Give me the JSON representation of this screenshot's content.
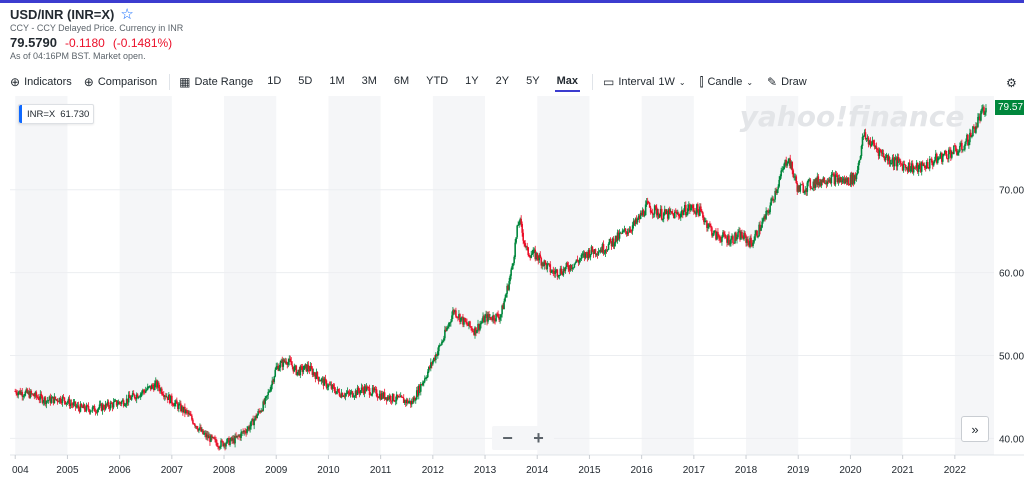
{
  "header": {
    "symbol": "USD/INR (INR=X)",
    "subtitle": "CCY - CCY Delayed Price. Currency in INR",
    "price": "79.5790",
    "change": "-0.1180",
    "change_pct": "(-0.1481%)",
    "as_of": "As of 04:16PM BST. Market open."
  },
  "toolbar": {
    "indicators": "Indicators",
    "comparison": "Comparison",
    "date_range": "Date Range",
    "ranges": [
      "1D",
      "5D",
      "1M",
      "3M",
      "6M",
      "YTD",
      "1Y",
      "2Y",
      "5Y",
      "Max"
    ],
    "active_range": "Max",
    "interval_label": "Interval",
    "interval_value": "1W",
    "chart_type": "Candle",
    "draw": "Draw"
  },
  "legend": {
    "label": "INR=X",
    "value": "61.730"
  },
  "last_price_tag": "79.57",
  "watermark": "yahoo!finance",
  "colors": {
    "up": "#00873c",
    "down": "#eb0f29",
    "accent": "#3c3ccf",
    "tag": "#00873c"
  },
  "chart_data": {
    "type": "line",
    "x": [
      2004.0,
      2004.3,
      2004.6,
      2004.9,
      2005.2,
      2005.5,
      2005.8,
      2006.1,
      2006.4,
      2006.7,
      2007.0,
      2007.3,
      2007.6,
      2007.9,
      2008.2,
      2008.5,
      2008.8,
      2009.0,
      2009.2,
      2009.4,
      2009.6,
      2009.9,
      2010.2,
      2010.4,
      2010.7,
      2011.0,
      2011.3,
      2011.6,
      2011.9,
      2012.2,
      2012.4,
      2012.6,
      2012.8,
      2013.0,
      2013.3,
      2013.5,
      2013.65,
      2013.8,
      2014.0,
      2014.3,
      2014.5,
      2014.8,
      2015.0,
      2015.3,
      2015.6,
      2015.9,
      2016.1,
      2016.4,
      2016.7,
      2016.9,
      2017.1,
      2017.4,
      2017.7,
      2017.9,
      2018.1,
      2018.4,
      2018.6,
      2018.8,
      2019.0,
      2019.3,
      2019.6,
      2019.9,
      2020.1,
      2020.25,
      2020.5,
      2020.7,
      2021.0,
      2021.3,
      2021.6,
      2021.9,
      2022.1,
      2022.3,
      2022.5,
      2022.6
    ],
    "values": [
      45.7,
      45.3,
      44.6,
      44.8,
      43.7,
      43.5,
      44.0,
      44.5,
      45.5,
      46.5,
      44.5,
      43.0,
      40.5,
      39.3,
      39.8,
      41.5,
      44.5,
      48.5,
      49.5,
      48.0,
      48.6,
      46.8,
      45.5,
      45.3,
      46.0,
      45.2,
      44.8,
      44.3,
      48.0,
      52.0,
      55.5,
      54.0,
      53.0,
      54.5,
      54.8,
      60.0,
      66.5,
      62.5,
      62.0,
      60.0,
      60.3,
      61.5,
      62.5,
      63.0,
      64.5,
      66.0,
      68.0,
      67.0,
      67.0,
      67.8,
      67.5,
      64.5,
      64.0,
      64.5,
      63.5,
      67.0,
      70.5,
      74.0,
      70.0,
      70.8,
      71.5,
      71.0,
      71.5,
      76.5,
      75.0,
      73.8,
      73.0,
      72.5,
      73.5,
      74.5,
      74.8,
      76.5,
      79.0,
      79.57
    ],
    "xlim": [
      2003.9,
      2022.75
    ],
    "ylim": [
      38.0,
      81.3
    ],
    "y_ticks": [
      "40.00",
      "50.00",
      "60.00",
      "70.00"
    ],
    "y_tick_values": [
      40,
      50,
      60,
      70
    ],
    "x_ticks": [
      "004",
      "2005",
      "2006",
      "2007",
      "2008",
      "2009",
      "2010",
      "2011",
      "2012",
      "2013",
      "2014",
      "2015",
      "2016",
      "2017",
      "2018",
      "2019",
      "2020",
      "2021",
      "2022"
    ],
    "x_tick_values": [
      2004,
      2005,
      2006,
      2007,
      2008,
      2009,
      2010,
      2011,
      2012,
      2013,
      2014,
      2015,
      2016,
      2017,
      2018,
      2019,
      2020,
      2021,
      2022
    ],
    "grid": true,
    "legend": "top-left"
  }
}
